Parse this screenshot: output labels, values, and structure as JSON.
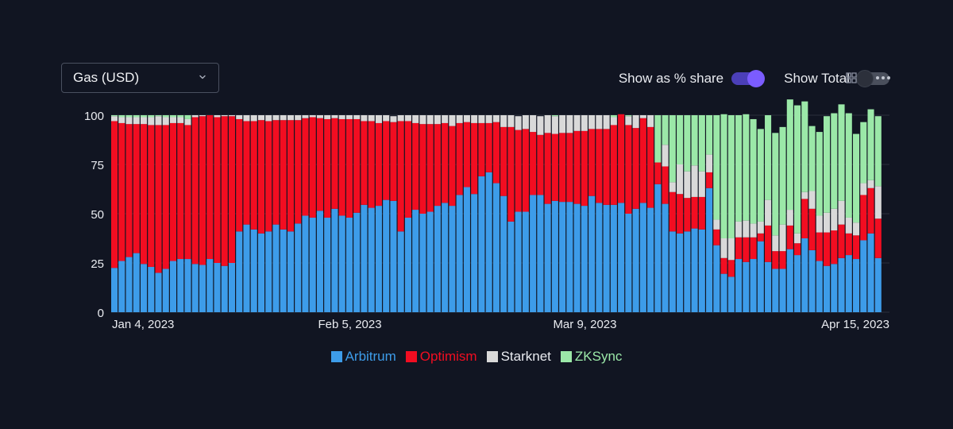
{
  "metric_select": {
    "value": "Gas (USD)",
    "icon": "chevron-down-icon"
  },
  "toggles": {
    "share": {
      "label": "Show as % share",
      "on": true
    },
    "total": {
      "label": "Show Total",
      "on": false
    }
  },
  "icons": {
    "grid": "grid-icon",
    "more": "more-icon"
  },
  "colors": {
    "background": "#111522",
    "Arbitrum": "#3d9ce9",
    "Optimism": "#f20d21",
    "Starknet": "#d9d9d9",
    "ZKSync": "#9be8a8"
  },
  "chart_data": {
    "type": "bar",
    "stacked": true,
    "title": "",
    "xlabel": "",
    "ylabel": "",
    "ylim": [
      0,
      100
    ],
    "yticks": [
      0,
      25,
      50,
      75,
      100
    ],
    "xtick_labels": [
      "Jan 4, 2023",
      "Feb 5, 2023",
      "Mar 9, 2023",
      "Apr 15, 2023"
    ],
    "xtick_index": [
      0,
      32,
      64,
      101
    ],
    "grid": "horizontal",
    "legend_position": "bottom-center",
    "series": [
      {
        "name": "Arbitrum",
        "values": [
          22.5,
          26,
          28,
          30,
          24.5,
          23,
          20,
          22,
          26,
          27,
          27,
          24.5,
          24,
          27,
          25,
          23.5,
          25,
          41,
          44.5,
          42,
          40,
          41,
          44.5,
          42,
          41,
          45,
          49,
          48,
          51.5,
          48,
          52.5,
          49,
          48,
          50.5,
          54.5,
          53,
          54,
          57,
          56.5,
          41,
          48,
          52,
          50,
          51,
          54,
          55.5,
          54,
          59.5,
          63.5,
          60,
          69,
          71,
          65.5,
          59,
          46,
          51,
          51,
          59.5,
          59.5,
          55,
          56.5,
          56,
          56,
          55,
          54,
          59,
          55.5,
          54.5,
          54.5,
          55.5,
          50,
          52.5,
          55.5,
          53,
          65,
          55,
          41,
          40,
          41,
          42.5,
          42,
          63,
          34,
          19.5,
          18,
          27,
          25.5,
          27,
          36,
          25.5,
          22,
          22,
          32,
          29,
          37.5,
          31.5,
          26,
          23.5,
          24.5,
          27.5,
          29,
          27,
          36.5,
          40,
          27.5
        ]
      },
      {
        "name": "Optimism",
        "values": [
          74.5,
          70,
          67.5,
          65.5,
          71,
          72,
          75,
          73,
          70,
          69,
          68,
          74.5,
          75.5,
          73,
          74,
          76,
          74.5,
          57,
          52.5,
          55,
          57.5,
          56,
          53,
          55.5,
          56.5,
          52.5,
          49.5,
          51,
          47,
          50,
          46,
          49,
          50,
          47.5,
          42.5,
          44,
          42,
          40,
          40,
          56,
          49,
          44,
          45.5,
          44.5,
          41.5,
          40.5,
          40.5,
          36.5,
          33,
          36,
          27,
          25,
          31,
          35,
          48,
          41.5,
          42,
          32,
          30.5,
          36,
          34,
          35,
          35,
          37,
          38,
          34,
          37.5,
          38.5,
          40.5,
          45,
          45,
          41,
          43,
          41,
          11,
          19,
          20,
          20,
          17,
          16,
          16.5,
          8,
          8,
          8,
          8.5,
          11,
          12.5,
          11,
          4,
          18.5,
          9,
          9,
          12,
          6,
          20,
          21,
          14.5,
          17,
          17,
          17,
          11,
          12,
          23,
          23,
          20
        ]
      },
      {
        "name": "Starknet",
        "values": [
          2.5,
          3,
          3.5,
          3.5,
          3.5,
          4,
          4.5,
          4,
          3,
          3,
          3,
          1,
          0.5,
          0,
          1,
          0.5,
          0.5,
          2,
          3,
          3,
          2.5,
          3,
          2.5,
          2.5,
          2.5,
          2.5,
          1.5,
          1,
          1.5,
          2,
          1.5,
          2,
          2,
          2,
          3,
          3,
          4,
          3,
          3,
          3,
          3,
          4,
          4.5,
          4.5,
          4.5,
          4,
          5.5,
          4,
          3.5,
          4,
          4,
          4,
          3.5,
          6,
          6,
          7,
          7,
          8.5,
          9.5,
          9,
          9,
          9,
          9,
          8,
          8,
          7,
          7,
          7,
          4,
          0,
          4.5,
          6.5,
          1.5,
          6,
          0,
          11,
          5,
          15,
          13.5,
          16,
          13,
          9,
          5,
          10,
          11,
          8,
          8.5,
          7,
          6,
          13,
          8,
          13.5,
          8,
          5,
          3.5,
          9,
          8.5,
          10,
          11,
          12,
          8,
          6.5,
          6,
          4,
          16.5
        ]
      },
      {
        "name": "ZKSync",
        "values": [
          0.5,
          1,
          1,
          1,
          1,
          1,
          0.5,
          1,
          1,
          1,
          2,
          0,
          0,
          0,
          0,
          0,
          0,
          0,
          0,
          0,
          0,
          0,
          0,
          0,
          0,
          0,
          0,
          0,
          0,
          0,
          0,
          0,
          0,
          0,
          0,
          0,
          0,
          0,
          0,
          0,
          0,
          0,
          0,
          0,
          0,
          0,
          0,
          0,
          0,
          0,
          0,
          0,
          0,
          0,
          0,
          0,
          0,
          0,
          0,
          0,
          0.5,
          0,
          0,
          0,
          0,
          0,
          0,
          0,
          1,
          0,
          0.5,
          0,
          0,
          0,
          24,
          15,
          34,
          25,
          28.5,
          25.5,
          28.5,
          20,
          53,
          63,
          62.5,
          54,
          54,
          53,
          47,
          43,
          52,
          49.5,
          56,
          65,
          46,
          33,
          42.5,
          49,
          48.5,
          49,
          53,
          45,
          31,
          36,
          35.5,
          36
        ]
      }
    ]
  }
}
